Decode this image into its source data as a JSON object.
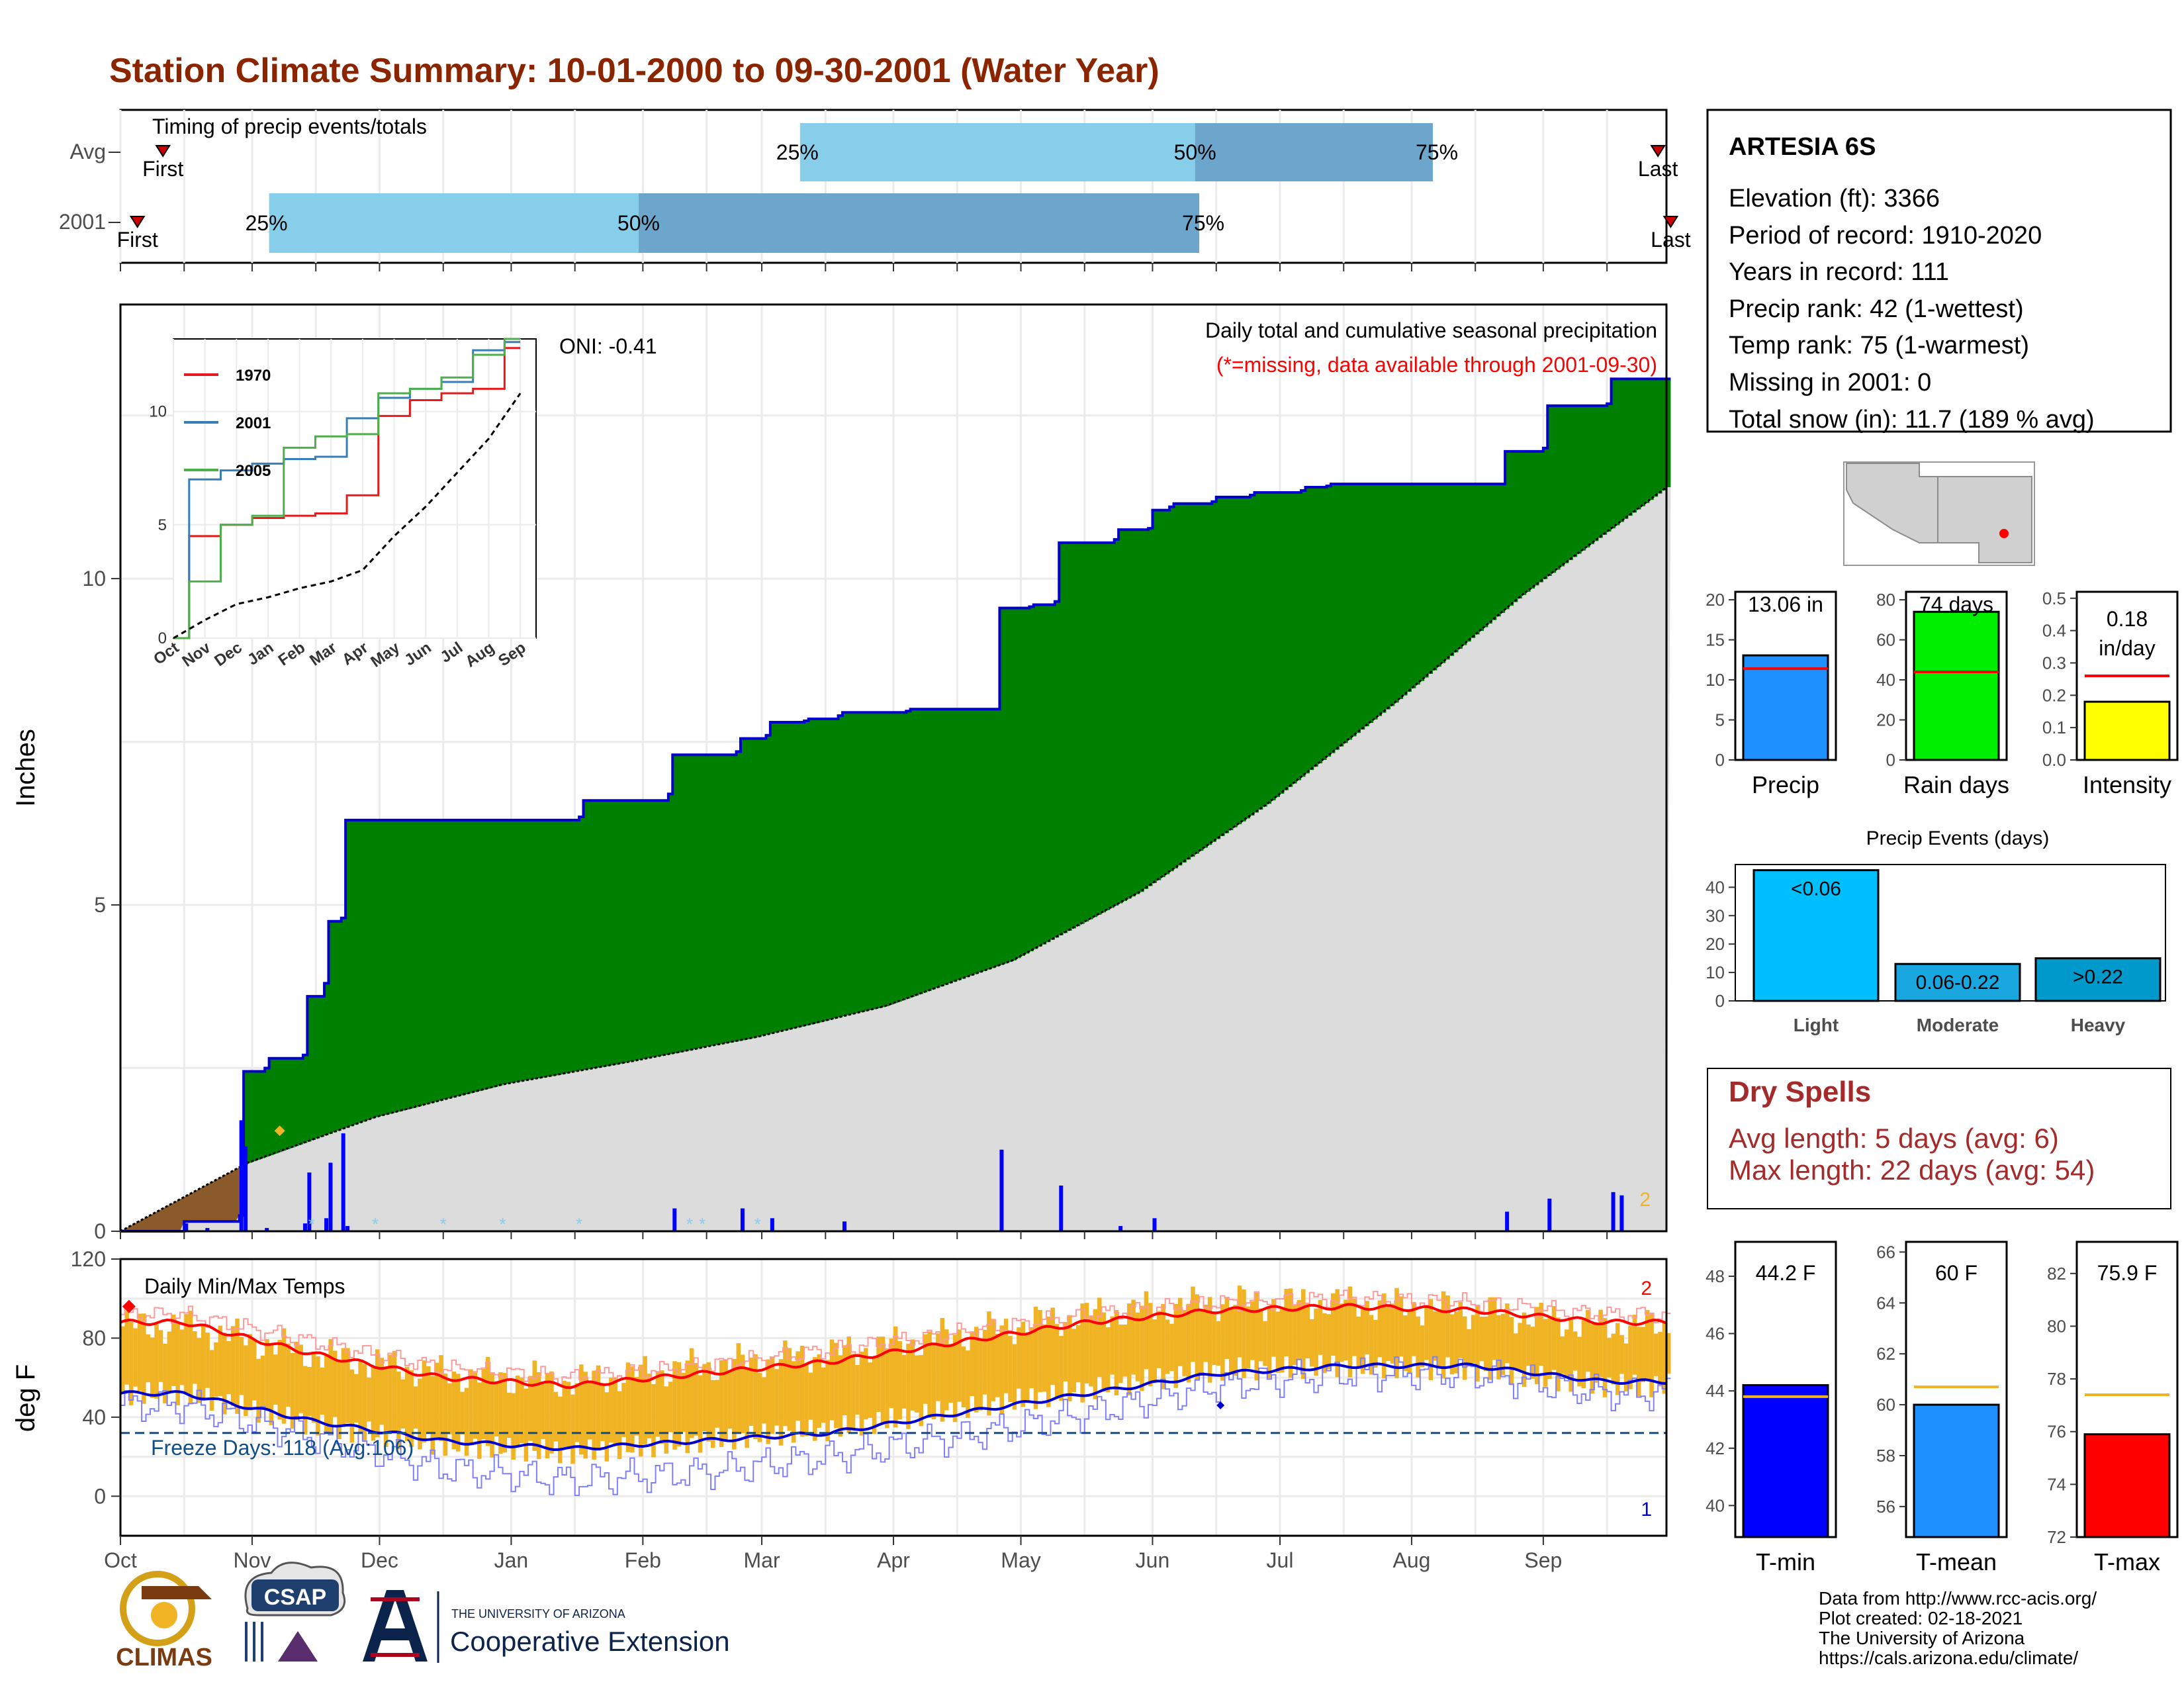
{
  "title": "Station Climate Summary: 10-01-2000 to 09-30-2001 (Water Year)",
  "timing": {
    "panel_title": "Timing of precip events/totals",
    "rows": [
      {
        "label": "Avg",
        "first": "First",
        "last": "Last",
        "p25": "25%",
        "p50": "50%",
        "p75": "75%",
        "first_day": 10,
        "q25_day": 160,
        "q50_day": 253,
        "q75_day": 309,
        "last_day": 362
      },
      {
        "label": "2001",
        "first": "First",
        "last": "Last",
        "p25": "25%",
        "p50": "50%",
        "p75": "75%",
        "first_day": 4,
        "q25_day": 35,
        "q50_day": 122,
        "q75_day": 254,
        "last_day": 365
      }
    ]
  },
  "precip_panel": {
    "ylabel": "Inches",
    "oni": "ONI: -0.41",
    "title": "Daily total and cumulative seasonal precipitation",
    "subtitle": "(*=missing, data available through 2001-09-30)",
    "yticks": [
      "0",
      "5",
      "10"
    ],
    "ylim": [
      0,
      14.2
    ],
    "corner_label": "2",
    "inset": {
      "xticks": [
        "Oct",
        "Nov",
        "Dec",
        "Jan",
        "Feb",
        "Mar",
        "Apr",
        "May",
        "Jun",
        "Jul",
        "Aug",
        "Sep"
      ],
      "yticks": [
        "0",
        "5",
        "10"
      ],
      "legend": [
        {
          "label": "1970",
          "color": "#e41a1c"
        },
        {
          "label": "2001",
          "color": "#377eb8"
        },
        {
          "label": "2005",
          "color": "#4daf4a"
        }
      ]
    }
  },
  "temp_panel": {
    "ylabel": "deg F",
    "title": "Daily Min/Max Temps",
    "freeze_label": "Freeze Days: 118 (Avg:106)",
    "yticks": [
      "0",
      "40",
      "80",
      "120"
    ],
    "label_max": "2",
    "label_min": "1",
    "months": [
      "Oct",
      "Nov",
      "Dec",
      "Jan",
      "Feb",
      "Mar",
      "Apr",
      "May",
      "Jun",
      "Jul",
      "Aug",
      "Sep"
    ]
  },
  "station": {
    "name": "ARTESIA 6S",
    "lines": [
      "Elevation (ft): 3366",
      "Period of record: 1910-2020",
      "Years in record: 111",
      "Precip rank: 42 (1-wettest)",
      "Temp rank: 75 (1-warmest)",
      "Missing in 2001: 0",
      "Total snow (in): 11.7 (189 % avg)"
    ]
  },
  "metric_bars": [
    {
      "label": "Precip",
      "value_text": "13.06 in",
      "value": 13.06,
      "avg": 11.4,
      "yticks": [
        "0",
        "5",
        "10",
        "15",
        "20"
      ],
      "ylim": [
        0,
        21
      ],
      "color": "#1e90ff"
    },
    {
      "label": "Rain days",
      "value_text": "74 days",
      "value": 74,
      "avg": 44,
      "yticks": [
        "0",
        "20",
        "40",
        "60",
        "80"
      ],
      "ylim": [
        0,
        84
      ],
      "color": "#00ee00"
    },
    {
      "label": "Intensity",
      "value_text": "0.18 in/day",
      "value": 0.18,
      "avg": 0.26,
      "yticks": [
        "0.0",
        "0.1",
        "0.2",
        "0.3",
        "0.4",
        "0.5"
      ],
      "ylim": [
        0,
        0.52
      ],
      "color": "#ffff00"
    }
  ],
  "events": {
    "title": "Precip Events (days)",
    "bars": [
      {
        "cat": "Light",
        "label": "<0.06",
        "value": 46,
        "color": "#00bfff"
      },
      {
        "cat": "Moderate",
        "label": "0.06-0.22",
        "value": 13,
        "color": "#1aa7e0"
      },
      {
        "cat": "Heavy",
        "label": ">0.22",
        "value": 15,
        "color": "#0099cc"
      }
    ],
    "yticks": [
      "0",
      "10",
      "20",
      "30",
      "40"
    ],
    "ylim": [
      0,
      48
    ]
  },
  "dry_spells": {
    "title": "Dry Spells",
    "avg_line": "Avg length: 5 days (avg: 6)",
    "max_line": "Max length: 22 days (avg: 54)",
    "color": "#a52a2a"
  },
  "temp_bars": [
    {
      "label": "T-min",
      "value_text": "44.2 F",
      "value": 44.2,
      "avg": 43.8,
      "yticks": [
        "40",
        "42",
        "44",
        "46",
        "48"
      ],
      "ylim": [
        38.9,
        49.2
      ],
      "color": "#0000ff"
    },
    {
      "label": "T-mean",
      "value_text": "60 F",
      "value": 60.0,
      "avg": 60.7,
      "yticks": [
        "56",
        "58",
        "60",
        "62",
        "64",
        "66"
      ],
      "ylim": [
        54.8,
        66.4
      ],
      "color": "#1e90ff"
    },
    {
      "label": "T-max",
      "value_text": "75.9 F",
      "value": 75.9,
      "avg": 77.4,
      "yticks": [
        "72",
        "74",
        "76",
        "78",
        "80",
        "82"
      ],
      "ylim": [
        72,
        83.2
      ],
      "color": "#ff0000"
    }
  ],
  "credits": {
    "lines": [
      "Data from http://www.rcc-acis.org/",
      "Plot created: 02-18-2021",
      "The University of Arizona",
      "https://cals.arizona.edu/climate/"
    ]
  },
  "logos": {
    "climas": "CLIMAS",
    "csap": "CSAP",
    "ua_small": "THE UNIVERSITY OF ARIZONA",
    "ua_big": "Cooperative Extension"
  },
  "colors": {
    "title": "#8b2500",
    "cum_fill": "#008000",
    "cum_line": "#0000cd",
    "avg_fill": "#dcdcdc",
    "daily_bar": "#0000ff",
    "temp_range": "#f0b323",
    "tmax_avg": "#ff0000",
    "tmin_avg": "#0000cd",
    "q_light": "#87ceeb",
    "q_dark": "#6ca6cd"
  },
  "chart_data": [
    {
      "type": "area",
      "title": "Daily total and cumulative seasonal precipitation",
      "ylabel": "Inches",
      "ylim": [
        0,
        14.2
      ],
      "cumulative_2001": {
        "day": [
          0,
          15,
          28,
          29,
          34,
          35,
          43,
          44,
          48,
          49,
          52,
          53,
          108,
          109,
          129,
          130,
          145,
          146,
          152,
          153,
          161,
          162,
          169,
          170,
          185,
          186,
          206,
          207,
          214,
          215,
          220,
          221,
          234,
          235,
          242,
          243,
          247,
          248,
          257,
          258,
          266,
          267,
          278,
          279,
          284,
          285,
          325,
          326,
          335,
          336,
          350,
          351,
          364
        ],
        "value": [
          0.0,
          0.15,
          0.24,
          2.45,
          2.5,
          2.65,
          2.7,
          3.6,
          3.8,
          4.75,
          4.8,
          6.3,
          6.35,
          6.6,
          6.7,
          7.3,
          7.35,
          7.55,
          7.6,
          7.8,
          7.82,
          7.85,
          7.9,
          7.95,
          7.97,
          8.0,
          8.0,
          9.55,
          9.57,
          9.6,
          9.65,
          10.55,
          10.6,
          10.75,
          10.77,
          11.05,
          11.1,
          11.15,
          11.18,
          11.25,
          11.28,
          11.32,
          11.35,
          11.4,
          11.42,
          11.45,
          11.45,
          11.95,
          12.0,
          12.65,
          12.68,
          13.06,
          13.06
        ]
      },
      "average_cumulative": {
        "day": [
          0,
          30,
          60,
          90,
          120,
          150,
          180,
          210,
          240,
          270,
          300,
          330,
          364
        ],
        "value": [
          0,
          1.05,
          1.75,
          2.25,
          2.6,
          2.98,
          3.45,
          4.15,
          5.2,
          6.55,
          8.1,
          9.75,
          11.4
        ]
      },
      "daily_spikes": {
        "day": [
          15,
          20,
          28,
          29,
          34,
          43,
          44,
          48,
          49,
          52,
          53,
          130,
          146,
          153,
          170,
          207,
          221,
          235,
          243,
          326,
          336,
          351,
          353
        ],
        "value": [
          0.12,
          0.05,
          1.7,
          1.3,
          0.05,
          0.12,
          0.9,
          0.2,
          1.05,
          1.5,
          0.08,
          0.35,
          0.35,
          0.2,
          0.15,
          1.25,
          0.7,
          0.08,
          0.2,
          0.3,
          0.5,
          0.6,
          0.55
        ]
      }
    },
    {
      "type": "line",
      "title": "",
      "x": [
        "Oct",
        "Nov",
        "Dec",
        "Jan",
        "Feb",
        "Mar",
        "Apr",
        "May",
        "Jun",
        "Jul",
        "Aug",
        "Sep"
      ],
      "ylim": [
        0,
        13.2
      ],
      "series": [
        {
          "name": "1970",
          "values": [
            0,
            4.5,
            5.0,
            5.3,
            5.4,
            5.5,
            6.3,
            9.8,
            10.5,
            10.8,
            11.0,
            12.8
          ]
        },
        {
          "name": "2001",
          "values": [
            0,
            7.0,
            7.4,
            7.7,
            7.9,
            8.0,
            9.7,
            10.6,
            11.0,
            11.3,
            12.7,
            13.06
          ]
        },
        {
          "name": "2005",
          "values": [
            0,
            2.5,
            5.0,
            5.4,
            8.4,
            8.9,
            9.0,
            10.8,
            11.0,
            11.5,
            12.5,
            13.2
          ]
        },
        {
          "name": "",
          "values": [
            0,
            0.8,
            1.5,
            1.8,
            2.2,
            2.5,
            3.0,
            4.5,
            5.8,
            7.3,
            8.8,
            10.8
          ]
        }
      ]
    },
    {
      "type": "line",
      "title": "Daily Min/Max Temps",
      "ylabel": "deg F",
      "ylim": [
        -20,
        120
      ],
      "x": [
        "Oct",
        "Nov",
        "Dec",
        "Jan",
        "Feb",
        "Mar",
        "Apr",
        "May",
        "Jun",
        "Jul",
        "Aug",
        "Sep"
      ],
      "series": [
        {
          "name": "",
          "values": [
            88,
            72,
            60,
            56,
            62,
            68,
            78,
            88,
            94,
            96,
            94,
            88
          ]
        },
        {
          "name": "",
          "values": [
            52,
            38,
            28,
            24,
            28,
            32,
            42,
            52,
            62,
            66,
            66,
            58
          ]
        },
        {
          "name": "",
          "values": [
            92,
            78,
            65,
            60,
            66,
            74,
            83,
            92,
            98,
            100,
            98,
            92
          ]
        },
        {
          "name": "",
          "values": [
            46,
            30,
            14,
            8,
            12,
            20,
            30,
            42,
            56,
            62,
            62,
            52
          ]
        }
      ],
      "freeze_threshold": 32,
      "daily_range_max": [
        86,
        72,
        62,
        58,
        66,
        72,
        82,
        92,
        98,
        98,
        94,
        86
      ],
      "daily_range_min": [
        52,
        36,
        26,
        22,
        28,
        34,
        44,
        54,
        64,
        66,
        64,
        56
      ]
    },
    {
      "type": "bar",
      "title": "Precip Events (days)",
      "categories": [
        "Light",
        "Moderate",
        "Heavy"
      ],
      "values": [
        46,
        13,
        15
      ],
      "ylim": [
        0,
        48
      ]
    }
  ]
}
